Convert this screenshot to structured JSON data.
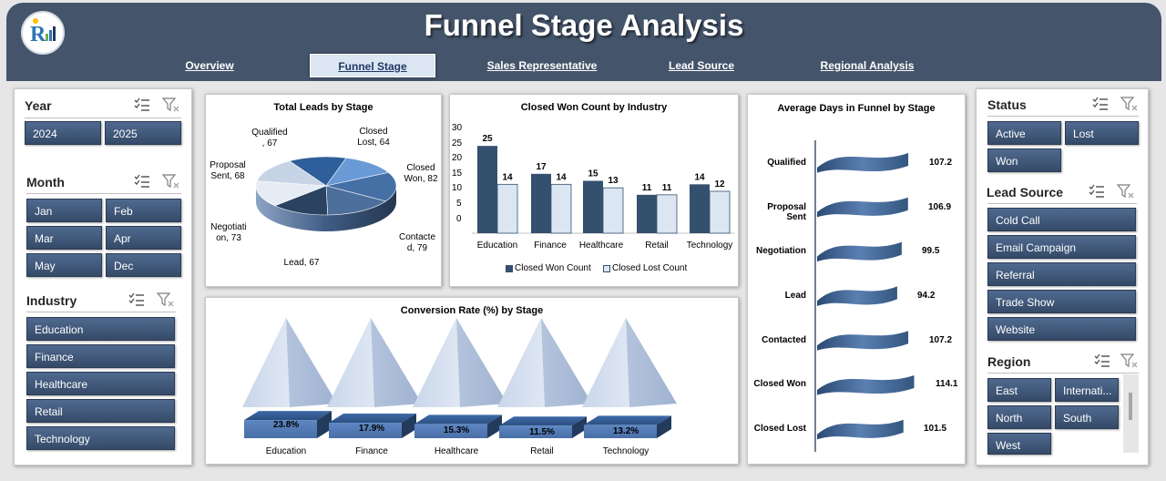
{
  "header": {
    "title": "Funnel Stage Analysis",
    "nav": [
      "Overview",
      "Funnel Stage",
      "Sales Representative",
      "Lead Source",
      "Regional Analysis"
    ],
    "active_nav": "Funnel Stage"
  },
  "slicers": {
    "year": {
      "title": "Year",
      "items": [
        "2024",
        "2025"
      ]
    },
    "month": {
      "title": "Month",
      "items": [
        "Jan",
        "Feb",
        "Mar",
        "Apr",
        "May",
        "Dec"
      ]
    },
    "industry": {
      "title": "Industry",
      "items": [
        "Education",
        "Finance",
        "Healthcare",
        "Retail",
        "Technology"
      ]
    },
    "status": {
      "title": "Status",
      "items": [
        "Active",
        "Lost",
        "Won"
      ]
    },
    "lead_source": {
      "title": "Lead Source",
      "items": [
        "Cold Call",
        "Email Campaign",
        "Referral",
        "Trade Show",
        "Website"
      ]
    },
    "region": {
      "title": "Region",
      "items": [
        "East",
        "Internati...",
        "North",
        "South",
        "West"
      ]
    }
  },
  "colors": {
    "header": "#44546a",
    "button": "#3f5678",
    "bar_dark": "#34506f",
    "bar_light": "#dce6f2"
  },
  "chart_data": [
    {
      "type": "pie",
      "title": "Total Leads by Stage",
      "slices": [
        {
          "label": "Qualified",
          "value": 67,
          "text_lines": [
            "Qualified",
            ", 67"
          ]
        },
        {
          "label": "Closed Lost",
          "value": 64,
          "text_lines": [
            "Closed",
            "Lost, 64"
          ]
        },
        {
          "label": "Closed Won",
          "value": 82,
          "text_lines": [
            "Closed",
            "Won, 82"
          ]
        },
        {
          "label": "Contacted",
          "value": 79,
          "text_lines": [
            "Contacte",
            "d, 79"
          ]
        },
        {
          "label": "Lead",
          "value": 67,
          "text_lines": [
            "Lead, 67"
          ]
        },
        {
          "label": "Negotiation",
          "value": 73,
          "text_lines": [
            "Negotiati",
            "on, 73"
          ]
        },
        {
          "label": "Proposal Sent",
          "value": 68,
          "text_lines": [
            "Proposal",
            "Sent, 68"
          ]
        }
      ]
    },
    {
      "type": "bar",
      "title": "Closed Won Count by Industry",
      "categories": [
        "Education",
        "Finance",
        "Healthcare",
        "Retail",
        "Technology"
      ],
      "series": [
        {
          "name": "Closed Won Count",
          "values": [
            25,
            17,
            15,
            11,
            14
          ]
        },
        {
          "name": "Closed Lost Count",
          "values": [
            14,
            14,
            13,
            11,
            12
          ]
        }
      ],
      "ylim": [
        0,
        30
      ],
      "yticks": [
        "0",
        "5",
        "10",
        "15",
        "20",
        "25",
        "30"
      ],
      "legend": "bottom"
    },
    {
      "type": "bar",
      "title": "Conversion Rate (%) by Stage",
      "categories": [
        "Education",
        "Finance",
        "Healthcare",
        "Retail",
        "Technology"
      ],
      "values": [
        23.8,
        17.9,
        15.3,
        11.5,
        13.2
      ],
      "value_labels": [
        "23.8%",
        "17.9%",
        "15.3%",
        "11.5%",
        "13.2%"
      ]
    },
    {
      "type": "bar",
      "title": "Average Days in Funnel by Stage",
      "categories": [
        "Qualified",
        "Proposal Sent",
        "Negotiation",
        "Lead",
        "Contacted",
        "Closed Won",
        "Closed Lost"
      ],
      "values": [
        107.2,
        106.9,
        99.5,
        94.2,
        107.2,
        114.1,
        101.5
      ],
      "value_labels": [
        "107.2",
        "106.9",
        "99.5",
        "94.2",
        "107.2",
        "114.1",
        "101.5"
      ]
    }
  ]
}
